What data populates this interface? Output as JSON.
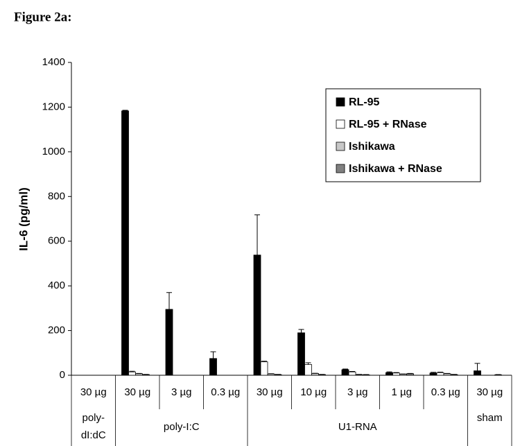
{
  "chart_data": {
    "type": "bar",
    "title": "Figure 2a:",
    "y_label": "IL-6 (pg/ml)",
    "categories": [
      "30 µg",
      "30 µg",
      "3 µg",
      "0.3 µg",
      "30 µg",
      "10 µg",
      "3 µg",
      "1 µg",
      "0.3 µg",
      "30 µg"
    ],
    "category_groups": [
      {
        "name": "poly-dI:dC",
        "count": 1
      },
      {
        "name": "poly-I:C",
        "count": 3
      },
      {
        "name": "U1-RNA",
        "count": 5
      },
      {
        "name": "sham",
        "count": 1
      }
    ],
    "series": [
      {
        "name": "RL-95",
        "color": "#000000",
        "values": [
          0,
          1183,
          295,
          75,
          538,
          190,
          25,
          12,
          10,
          20
        ],
        "errors": [
          0,
          3,
          75,
          30,
          180,
          15,
          3,
          3,
          3,
          33
        ]
      },
      {
        "name": "RL-95 + RNase",
        "color": "#ffffff",
        "values": [
          0,
          15,
          0,
          0,
          60,
          48,
          15,
          10,
          12,
          0
        ],
        "errors": [
          0,
          3,
          0,
          0,
          3,
          8,
          2,
          2,
          2,
          0
        ]
      },
      {
        "name": "Ishikawa",
        "color": "#c8c8c8",
        "values": [
          0,
          7,
          0,
          0,
          6,
          8,
          3,
          5,
          7,
          0
        ],
        "errors": [
          0,
          1,
          0,
          0,
          1,
          1,
          1,
          1,
          1,
          0
        ]
      },
      {
        "name": "Ishikawa + RNase",
        "color": "#808080",
        "values": [
          0,
          3,
          0,
          0,
          3,
          3,
          2,
          7,
          3,
          2
        ],
        "errors": [
          0,
          1,
          0,
          0,
          1,
          1,
          1,
          1,
          1,
          1
        ]
      }
    ],
    "ylim": [
      0,
      1400
    ],
    "yticks": [
      0,
      200,
      400,
      600,
      800,
      1000,
      1200,
      1400
    ]
  }
}
